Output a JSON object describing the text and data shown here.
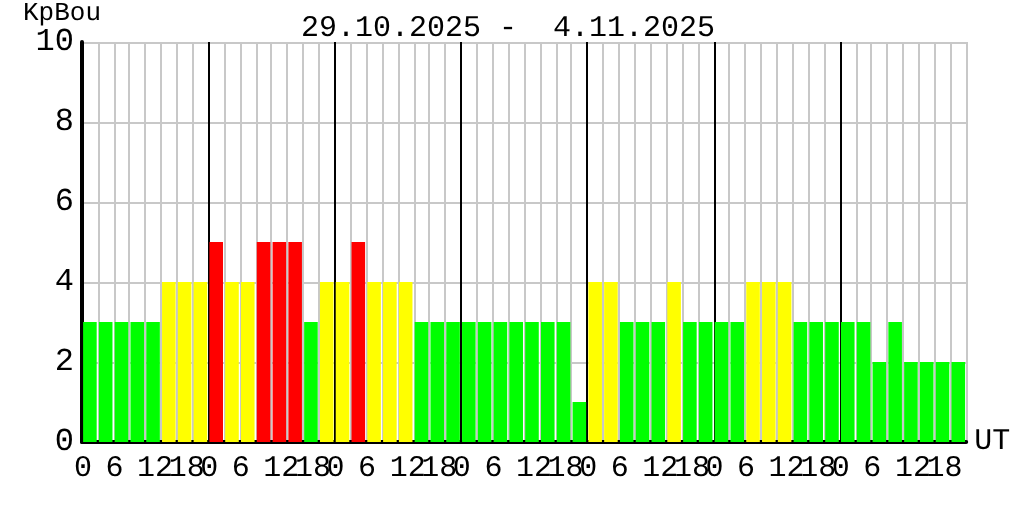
{
  "chart_data": {
    "type": "bar",
    "title": "29.10.2025 -  4.11.2025",
    "ylabel": "KpBou",
    "xlabel": "UT",
    "categories": [
      "0",
      null,
      "6",
      null,
      "12",
      null,
      "18",
      null,
      "0",
      null,
      "6",
      null,
      "12",
      null,
      "18",
      null,
      "0",
      null,
      "6",
      null,
      "12",
      null,
      "18",
      null,
      "0",
      null,
      "6",
      null,
      "12",
      null,
      "18",
      null,
      "0",
      null,
      "6",
      null,
      "12",
      null,
      "18",
      null,
      "0",
      null,
      "6",
      null,
      "12",
      null,
      "18",
      null,
      "0",
      null,
      "6",
      null,
      "12",
      null,
      "18",
      null
    ],
    "values": [
      3,
      3,
      3,
      3,
      3,
      4,
      4,
      4,
      5,
      4,
      4,
      5,
      5,
      5,
      3,
      4,
      4,
      5,
      4,
      4,
      4,
      3,
      3,
      3,
      3,
      3,
      3,
      3,
      3,
      3,
      3,
      1,
      4,
      4,
      3,
      3,
      3,
      4,
      3,
      3,
      3,
      3,
      4,
      4,
      4,
      3,
      3,
      3,
      3,
      3,
      2,
      3,
      2,
      2,
      2,
      2
    ],
    "colors": [
      "#00ff00",
      "#00ff00",
      "#00ff00",
      "#00ff00",
      "#00ff00",
      "#ffff00",
      "#ffff00",
      "#ffff00",
      "#ff0000",
      "#ffff00",
      "#ffff00",
      "#ff0000",
      "#ff0000",
      "#ff0000",
      "#00ff00",
      "#ffff00",
      "#ffff00",
      "#ff0000",
      "#ffff00",
      "#ffff00",
      "#ffff00",
      "#00ff00",
      "#00ff00",
      "#00ff00",
      "#00ff00",
      "#00ff00",
      "#00ff00",
      "#00ff00",
      "#00ff00",
      "#00ff00",
      "#00ff00",
      "#00ff00",
      "#ffff00",
      "#ffff00",
      "#00ff00",
      "#00ff00",
      "#00ff00",
      "#ffff00",
      "#00ff00",
      "#00ff00",
      "#00ff00",
      "#00ff00",
      "#ffff00",
      "#ffff00",
      "#ffff00",
      "#00ff00",
      "#00ff00",
      "#00ff00",
      "#00ff00",
      "#00ff00",
      "#00ff00",
      "#00ff00",
      "#00ff00",
      "#00ff00",
      "#00ff00",
      "#00ff00"
    ],
    "ylim": [
      0,
      10
    ],
    "yticks": [
      0,
      2,
      4,
      6,
      8,
      10
    ],
    "grid": true
  }
}
